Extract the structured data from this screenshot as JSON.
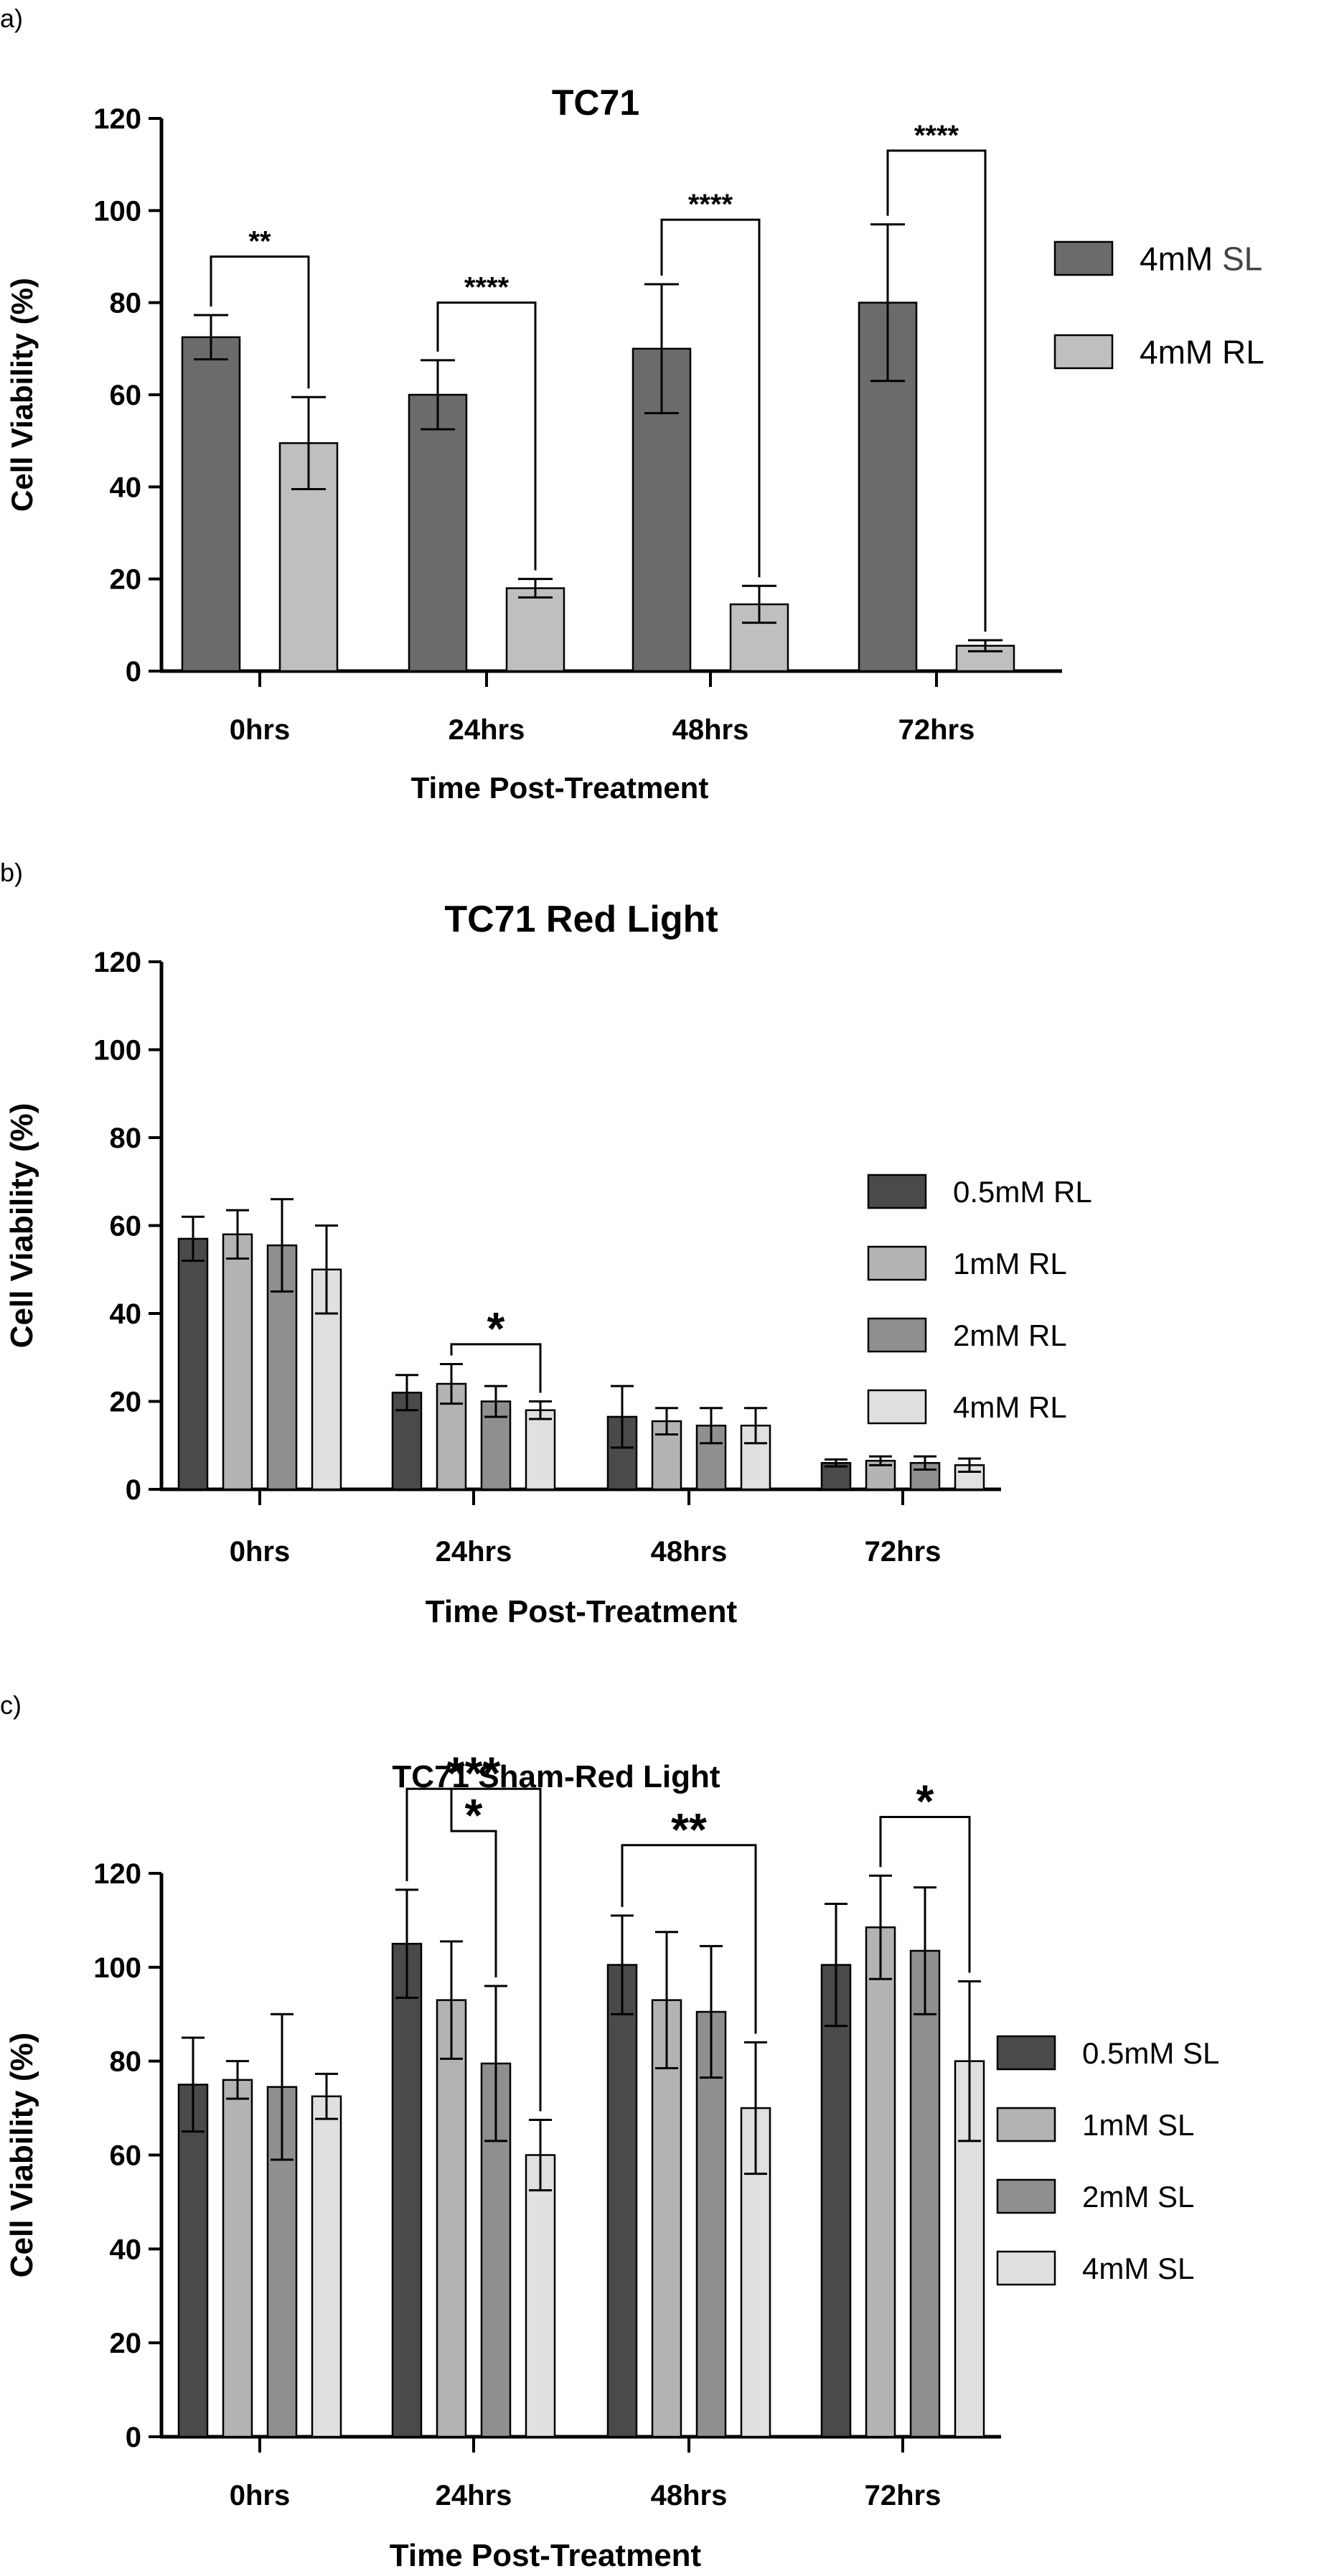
{
  "chart_data": [
    {
      "panel_label": "a)",
      "type": "bar",
      "title": "TC71",
      "xlabel": "Time Post-Treatment",
      "ylabel": "Cell Viability (%)",
      "ylim": [
        0,
        120
      ],
      "yticks": [
        "0",
        "20",
        "40",
        "60",
        "80",
        "100",
        "120"
      ],
      "categories": [
        "0hrs",
        "24hrs",
        "48hrs",
        "72hrs"
      ],
      "legend_position": "right",
      "series": [
        {
          "name": "4mM SL",
          "name_parts": [
            "4mM ",
            "SL"
          ],
          "color": "#6b6b6b",
          "values": [
            72.5,
            60,
            70,
            80
          ],
          "errors": [
            4.8,
            7.5,
            14,
            17
          ]
        },
        {
          "name": "4mM RL",
          "name_parts": [
            "4mM ",
            "RL"
          ],
          "color": "#bfbfbf",
          "values": [
            49.5,
            18,
            14.5,
            5.5
          ],
          "errors": [
            10,
            2,
            4,
            1.2
          ]
        }
      ],
      "significance": [
        {
          "label": "**",
          "category": 0,
          "from_series": 0,
          "to_series": 1,
          "y": 90
        },
        {
          "label": "****",
          "category": 1,
          "from_series": 0,
          "to_series": 1,
          "y": 80
        },
        {
          "label": "****",
          "category": 2,
          "from_series": 0,
          "to_series": 1,
          "y": 98
        },
        {
          "label": "****",
          "category": 3,
          "from_series": 0,
          "to_series": 1,
          "y": 113
        }
      ]
    },
    {
      "panel_label": "b)",
      "type": "bar",
      "title": "TC71 Red Light",
      "xlabel": "Time Post-Treatment",
      "ylabel": "Cell Viability (%)",
      "ylim": [
        0,
        120
      ],
      "yticks": [
        "0",
        "20",
        "40",
        "60",
        "80",
        "100",
        "120"
      ],
      "categories": [
        "0hrs",
        "24hrs",
        "48hrs",
        "72hrs"
      ],
      "legend_position": "right",
      "series": [
        {
          "name": "0.5mM RL",
          "color": "#4a4a4a",
          "values": [
            57,
            22,
            16.5,
            6
          ],
          "errors": [
            5,
            4,
            7,
            0.8
          ]
        },
        {
          "name": "1mM RL",
          "color": "#b3b3b3",
          "values": [
            58,
            24,
            15.5,
            6.5
          ],
          "errors": [
            5.5,
            4.5,
            3,
            1
          ]
        },
        {
          "name": "2mM RL",
          "color": "#8f8f8f",
          "values": [
            55.5,
            20,
            14.5,
            6
          ],
          "errors": [
            10.5,
            3.5,
            4,
            1.5
          ]
        },
        {
          "name": "4mM RL",
          "color": "#e0e0e0",
          "values": [
            50,
            18,
            14.5,
            5.5
          ],
          "errors": [
            10,
            2,
            4,
            1.5
          ]
        }
      ],
      "significance": [
        {
          "label": "*",
          "category": 1,
          "from_series": 1,
          "to_series": 3,
          "y": 33
        }
      ]
    },
    {
      "panel_label": "c)",
      "type": "bar",
      "title": "TC71 Sham-Red Light",
      "xlabel": "Time Post-Treatment",
      "ylabel": "Cell Viability (%)",
      "ylim": [
        0,
        120
      ],
      "yticks": [
        "0",
        "20",
        "40",
        "60",
        "80",
        "100",
        "120"
      ],
      "categories": [
        "0hrs",
        "24hrs",
        "48hrs",
        "72hrs"
      ],
      "legend_position": "right",
      "series": [
        {
          "name": "0.5mM SL",
          "color": "#4a4a4a",
          "values": [
            75,
            105,
            100.5,
            100.5
          ],
          "errors": [
            10,
            11.5,
            10.5,
            13
          ]
        },
        {
          "name": "1mM SL",
          "color": "#b3b3b3",
          "values": [
            76,
            93,
            93,
            108.5
          ],
          "errors": [
            4,
            12.5,
            14.5,
            11
          ]
        },
        {
          "name": "2mM SL",
          "color": "#8f8f8f",
          "values": [
            74.5,
            79.5,
            90.5,
            103.5
          ],
          "errors": [
            15.5,
            16.5,
            14,
            13.5
          ]
        },
        {
          "name": "4mM SL",
          "color": "#e0e0e0",
          "values": [
            72.5,
            60,
            70,
            80
          ],
          "errors": [
            4.8,
            7.5,
            14,
            17
          ]
        }
      ],
      "significance": [
        {
          "label": "***",
          "category": 1,
          "from_series": 0,
          "to_series": 3,
          "y": 138
        },
        {
          "label": "*",
          "category": 1,
          "from_series": 1,
          "to_series": 2,
          "y": 129,
          "left_drop_to": 138
        },
        {
          "label": "**",
          "category": 2,
          "from_series": 0,
          "to_series": 3,
          "y": 126
        },
        {
          "label": "*",
          "category": 3,
          "from_series": 1,
          "to_series": 3,
          "y": 132
        }
      ]
    }
  ]
}
